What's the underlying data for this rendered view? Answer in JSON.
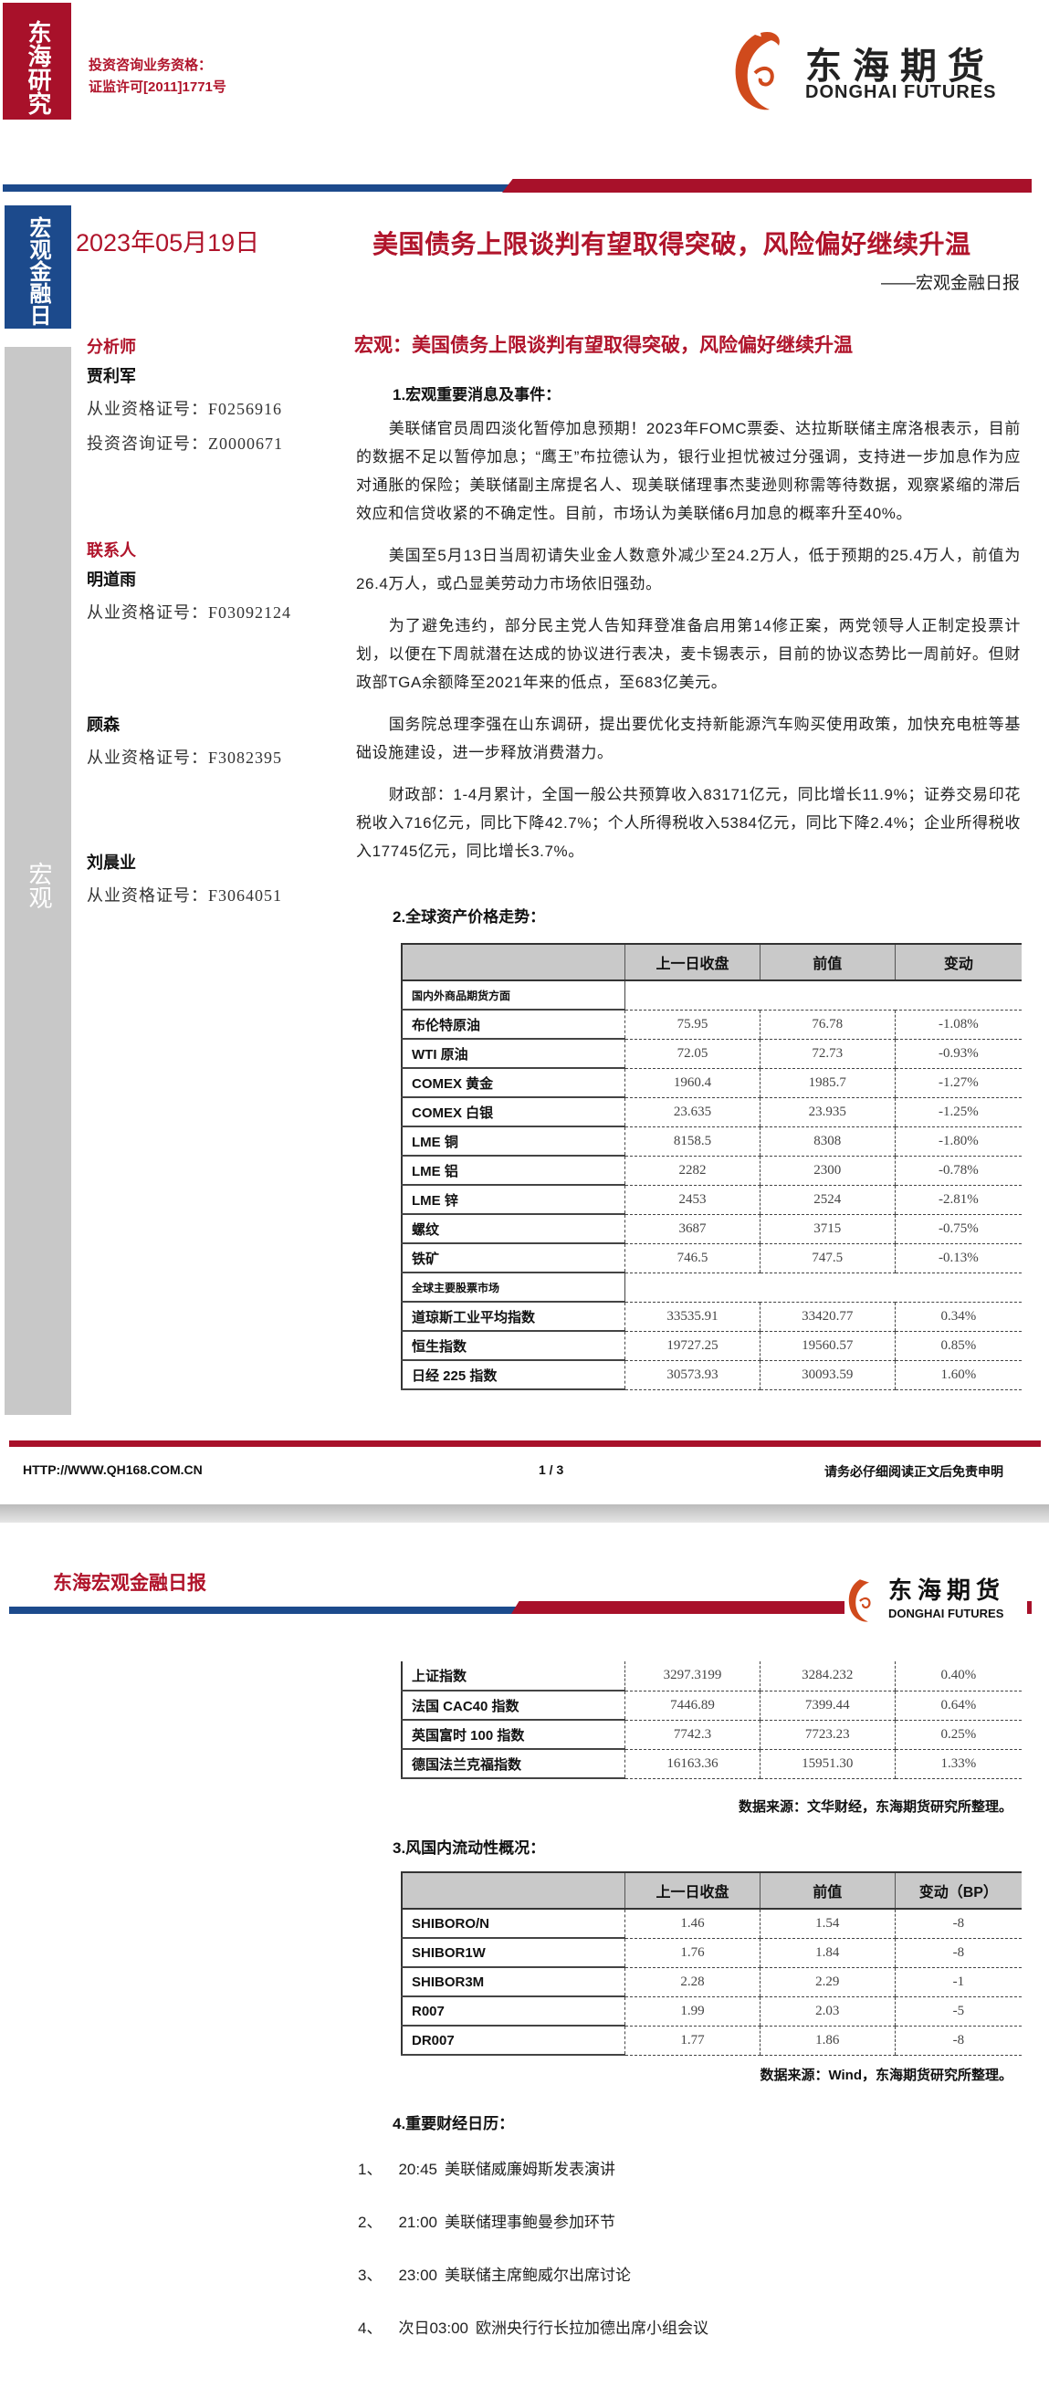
{
  "brand": {
    "vertical_tag": "东海研究",
    "logo_cn": "东海期货",
    "logo_en": "DONGHAI FUTURES",
    "license_label": "投资咨询业务资格：",
    "license_no": "证监许可[2011]1771号"
  },
  "colors": {
    "brand_red": "#a8112a",
    "brand_blue": "#1c4a8c",
    "side_gray": "#c8c8c8"
  },
  "side": {
    "report_type": "宏观金融日报",
    "category": "宏观"
  },
  "header": {
    "date": "2023年05月19日",
    "title": "美国债务上限谈判有望取得突破，风险偏好继续升温",
    "subtitle": "——宏观金融日报"
  },
  "people": {
    "analyst_label": "分析师",
    "analyst": {
      "name": "贾利军",
      "cert1": "从业资格证号：F0256916",
      "cert2": "投资咨询证号：Z0000671"
    },
    "contact_label": "联系人",
    "contacts": [
      {
        "name": "明道雨",
        "cert": "从业资格证号：F03092124"
      },
      {
        "name": "顾森",
        "cert": "从业资格证号：F3082395"
      },
      {
        "name": "刘晨业",
        "cert": "从业资格证号：F3064051"
      }
    ]
  },
  "main": {
    "section_title": "宏观：美国债务上限谈判有望取得突破，风险偏好继续升温",
    "h1": "1.宏观重要消息及事件：",
    "paragraphs": [
      "美联储官员周四淡化暂停加息预期！2023年FOMC票委、达拉斯联储主席洛根表示，目前的数据不足以暂停加息；“鹰王”布拉德认为，银行业担忧被过分强调，支持进一步加息作为应对通胀的保险；美联储副主席提名人、现美联储理事杰斐逊则称需等待数据，观察紧缩的滞后效应和信贷收紧的不确定性。目前，市场认为美联储6月加息的概率升至40%。",
      "美国至5月13日当周初请失业金人数意外减少至24.2万人，低于预期的25.4万人，前值为26.4万人，或凸显美劳动力市场依旧强劲。",
      "为了避免违约，部分民主党人告知拜登准备启用第14修正案，两党领导人正制定投票计划，以便在下周就潜在达成的协议进行表决，麦卡锡表示，目前的协议态势比一周前好。但财政部TGA余额降至2021年来的低点，至683亿美元。",
      "国务院总理李强在山东调研，提出要优化支持新能源汽车购买使用政策，加快充电桩等基础设施建设，进一步释放消费潜力。",
      "财政部：1-4月累计，全国一般公共预算收入83171亿元，同比增长11.9%；证券交易印花税收入716亿元，同比下降42.7%；个人所得税收入5384亿元，同比下降2.4%；企业所得税收入17745亿元，同比增长3.7%。"
    ],
    "h2": "2.全球资产价格走势：",
    "table1": {
      "headers": [
        "",
        "上一日收盘",
        "前值",
        "变动"
      ],
      "section_commodities": "国内外商品期货方面",
      "commodities": [
        [
          "布伦特原油",
          "75.95",
          "76.78",
          "-1.08%"
        ],
        [
          "WTI 原油",
          "72.05",
          "72.73",
          "-0.93%"
        ],
        [
          "COMEX 黄金",
          "1960.4",
          "1985.7",
          "-1.27%"
        ],
        [
          "COMEX 白银",
          "23.635",
          "23.935",
          "-1.25%"
        ],
        [
          "LME 铜",
          "8158.5",
          "8308",
          "-1.80%"
        ],
        [
          "LME 铝",
          "2282",
          "2300",
          "-0.78%"
        ],
        [
          "LME 锌",
          "2453",
          "2524",
          "-2.81%"
        ],
        [
          "螺纹",
          "3687",
          "3715",
          "-0.75%"
        ],
        [
          "铁矿",
          "746.5",
          "747.5",
          "-0.13%"
        ]
      ],
      "section_equities": "全球主要股票市场",
      "equities_p1": [
        [
          "道琼斯工业平均指数",
          "33535.91",
          "33420.77",
          "0.34%"
        ],
        [
          "恒生指数",
          "19727.25",
          "19560.57",
          "0.85%"
        ],
        [
          "日经 225 指数",
          "30573.93",
          "30093.59",
          "1.60%"
        ]
      ],
      "equities_p2": [
        [
          "上证指数",
          "3297.3199",
          "3284.232",
          "0.40%"
        ],
        [
          "法国 CAC40 指数",
          "7446.89",
          "7399.44",
          "0.64%"
        ],
        [
          "英国富时 100 指数",
          "7742.3",
          "7723.23",
          "0.25%"
        ],
        [
          "德国法兰克福指数",
          "16163.36",
          "15951.30",
          "1.33%"
        ]
      ],
      "source": "数据来源：文华财经，东海期货研究所整理。"
    },
    "h3": "3.风国内流动性概况：",
    "table2": {
      "headers": [
        "",
        "上一日收盘",
        "前值",
        "变动（BP）"
      ],
      "rows": [
        [
          "SHIBORO/N",
          "1.46",
          "1.54",
          "-8"
        ],
        [
          "SHIBOR1W",
          "1.76",
          "1.84",
          "-8"
        ],
        [
          "SHIBOR3M",
          "2.28",
          "2.29",
          "-1"
        ],
        [
          "R007",
          "1.99",
          "2.03",
          "-5"
        ],
        [
          "DR007",
          "1.77",
          "1.86",
          "-8"
        ]
      ],
      "source": "数据来源：Wind，东海期货研究所整理。"
    },
    "h4": "4.重要财经日历：",
    "calendar": [
      {
        "no": "1、",
        "time": "20:45",
        "event": "美联储威廉姆斯发表演讲"
      },
      {
        "no": "2、",
        "time": "21:00",
        "event": "美联储理事鲍曼参加环节"
      },
      {
        "no": "3、",
        "time": "23:00",
        "event": "美联储主席鲍威尔出席讨论"
      },
      {
        "no": "4、",
        "time": "次日03:00",
        "event": "欧洲央行行长拉加德出席小组会议"
      }
    ]
  },
  "footer": {
    "url": "HTTP://WWW.QH168.COM.CN",
    "page": "1 / 3",
    "disclaimer": "请务必仔细阅读正文后免责申明"
  },
  "page2_header": {
    "title": "东海宏观金融日报"
  }
}
